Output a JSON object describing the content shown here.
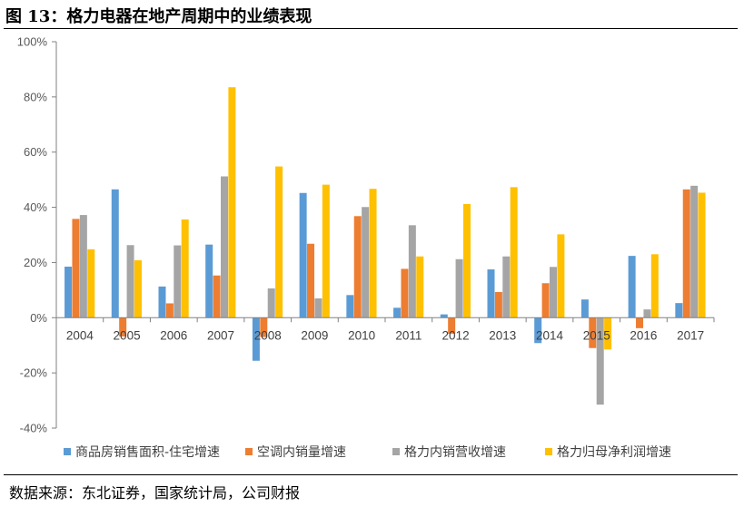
{
  "figure": {
    "title": "图 13：格力电器在地产周期中的业绩表现",
    "source": "数据来源：东北证券，国家统计局，公司财报"
  },
  "chart_data": {
    "type": "bar",
    "title": "",
    "xlabel": "",
    "ylabel": "",
    "ylim": [
      -0.4,
      1.0
    ],
    "yticks": [
      "100%",
      "80%",
      "60%",
      "40%",
      "20%",
      "0%",
      "-20%",
      "-40%"
    ],
    "ytick_values": [
      1.0,
      0.8,
      0.6,
      0.4,
      0.2,
      0.0,
      -0.2,
      -0.4
    ],
    "categories": [
      "2004",
      "2005",
      "2006",
      "2007",
      "2008",
      "2009",
      "2010",
      "2011",
      "2012",
      "2013",
      "2014",
      "2015",
      "2016",
      "2017"
    ],
    "grid": false,
    "legend_position": "bottom",
    "series": [
      {
        "name": "商品房销售面积-住宅增速",
        "color": "#5B9BD5",
        "values": [
          0.185,
          0.465,
          0.113,
          0.265,
          -0.156,
          0.452,
          0.082,
          0.036,
          0.012,
          0.175,
          -0.092,
          0.066,
          0.224,
          0.053
        ]
      },
      {
        "name": "空调内销量增速",
        "color": "#ED7D31",
        "values": [
          0.358,
          -0.068,
          0.052,
          0.153,
          -0.07,
          0.268,
          0.368,
          0.177,
          -0.058,
          0.093,
          0.125,
          -0.11,
          -0.038,
          0.465
        ]
      },
      {
        "name": "格力内销营收增速",
        "color": "#A5A5A5",
        "values": [
          0.372,
          0.263,
          0.262,
          0.512,
          0.106,
          0.07,
          0.401,
          0.335,
          0.212,
          0.222,
          0.184,
          -0.315,
          0.03,
          0.478
        ]
      },
      {
        "name": "格力归母净利润增速",
        "color": "#FFC000",
        "values": [
          0.248,
          0.208,
          0.356,
          0.835,
          0.548,
          0.482,
          0.467,
          0.222,
          0.412,
          0.473,
          0.302,
          -0.115,
          0.23,
          0.453
        ]
      }
    ]
  }
}
